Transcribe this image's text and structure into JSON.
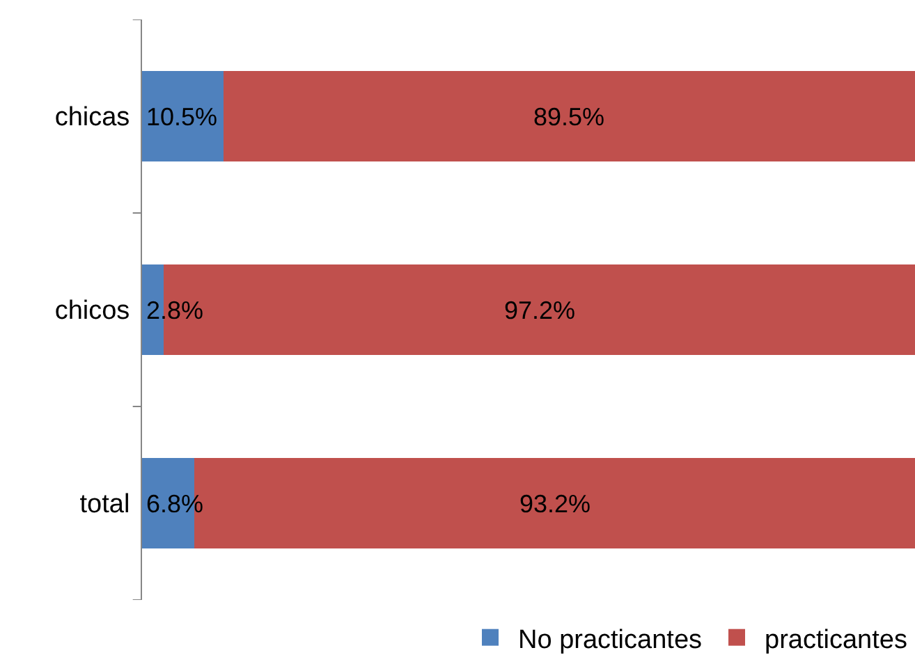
{
  "chart_data": {
    "type": "bar",
    "orientation": "horizontal",
    "stacked": true,
    "categories": [
      "chicas",
      "chicos",
      "total"
    ],
    "series": [
      {
        "name": "No practicantes",
        "color": "#4f81bd",
        "values": [
          10.5,
          2.8,
          6.8
        ],
        "value_labels": [
          "10.5%",
          "2.8%",
          "6.8%"
        ]
      },
      {
        "name": "practicantes",
        "color": "#c0504d",
        "values": [
          89.5,
          97.2,
          93.2
        ],
        "value_labels": [
          "89.5%",
          "97.2%",
          "93.2%"
        ]
      }
    ],
    "xlim": [
      0,
      100
    ],
    "legend": "bottom right"
  }
}
